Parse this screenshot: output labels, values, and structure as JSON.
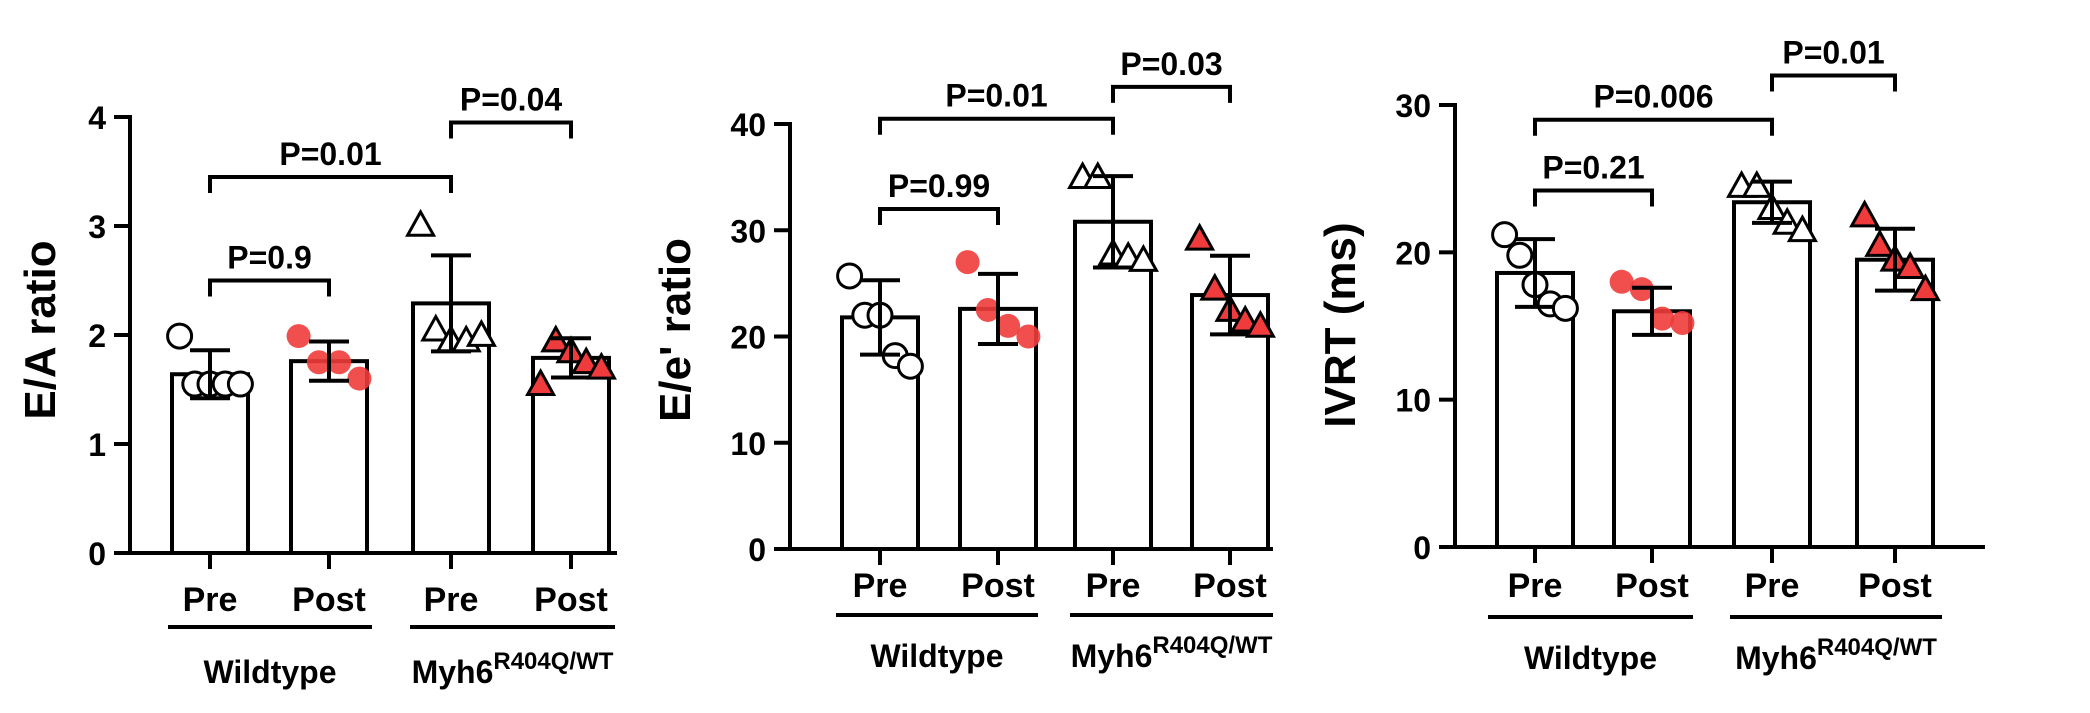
{
  "colors": {
    "wildtype_post": "#EF3B3B",
    "myh6_post": "#E23A3A",
    "stroke": "#000000",
    "bar_fill": "#ffffff"
  },
  "chart_data": [
    {
      "type": "bar",
      "ylabel": "E/A ratio",
      "ylim": [
        0,
        4
      ],
      "yticks": [
        0,
        1,
        2,
        3,
        4
      ],
      "categories": [
        "Pre",
        "Post",
        "Pre",
        "Post"
      ],
      "groups": [
        "Wildtype",
        "Myh6"
      ],
      "group_superscript": "R404Q/WT",
      "means": [
        1.64,
        1.76,
        2.29,
        1.79
      ],
      "sd": [
        0.22,
        0.18,
        0.44,
        0.18
      ],
      "points": [
        [
          1.99,
          1.55,
          1.55,
          1.55,
          1.55
        ],
        [
          1.99,
          1.75,
          1.75,
          1.6
        ],
        [
          3.01,
          2.05,
          1.95,
          1.95,
          2.0
        ],
        [
          1.55,
          1.95,
          1.85,
          1.75,
          1.7
        ]
      ],
      "markers": [
        "circle-open",
        "circle-red",
        "triangle-open",
        "triangle-red"
      ],
      "annotations": [
        {
          "label": "P=0.9",
          "from": 0,
          "to": 1,
          "y": 2.5
        },
        {
          "label": "P=0.01",
          "from": 0,
          "to": 2,
          "y": 3.45
        },
        {
          "label": "P=0.04",
          "from": 2,
          "to": 3,
          "y": 3.95
        }
      ]
    },
    {
      "type": "bar",
      "ylabel": "E/e' ratio",
      "ylim": [
        0,
        40
      ],
      "yticks": [
        0,
        10,
        20,
        30,
        40
      ],
      "categories": [
        "Pre",
        "Post",
        "Pre",
        "Post"
      ],
      "groups": [
        "Wildtype",
        "Myh6"
      ],
      "group_superscript": "R404Q/WT",
      "means": [
        21.8,
        22.6,
        30.8,
        23.9
      ],
      "sd": [
        3.5,
        3.3,
        4.3,
        3.7
      ],
      "points": [
        [
          25.7,
          22.0,
          22.0,
          18.2,
          17.2
        ],
        [
          27.0,
          22.5,
          21.0,
          20.0
        ],
        [
          35.0,
          35.0,
          27.8,
          27.5,
          27.2
        ],
        [
          29.2,
          24.5,
          22.5,
          21.5,
          21.0
        ]
      ],
      "markers": [
        "circle-open",
        "circle-red",
        "triangle-open",
        "triangle-red"
      ],
      "annotations": [
        {
          "label": "P=0.99",
          "from": 0,
          "to": 1,
          "y": 32.0
        },
        {
          "label": "P=0.01",
          "from": 0,
          "to": 2,
          "y": 40.5
        },
        {
          "label": "P=0.03",
          "from": 2,
          "to": 3,
          "y": 43.5
        }
      ]
    },
    {
      "type": "bar",
      "ylabel": "IVRT (ms)",
      "ylim": [
        0,
        30
      ],
      "yticks": [
        0,
        10,
        20,
        30
      ],
      "categories": [
        "Pre",
        "Post",
        "Pre",
        "Post"
      ],
      "groups": [
        "Wildtype",
        "Myh6"
      ],
      "group_superscript": "R404Q/WT",
      "means": [
        18.6,
        16.0,
        23.4,
        19.5
      ],
      "sd": [
        2.3,
        1.6,
        1.4,
        2.1
      ],
      "points": [
        [
          21.2,
          19.8,
          17.8,
          16.5,
          16.2
        ],
        [
          18.0,
          17.5,
          15.5,
          15.2
        ],
        [
          24.5,
          24.5,
          23.0,
          22.0,
          21.5
        ],
        [
          22.5,
          20.5,
          19.5,
          19.0,
          17.5
        ]
      ],
      "markers": [
        "circle-open",
        "circle-red",
        "triangle-open",
        "triangle-red"
      ],
      "annotations": [
        {
          "label": "P=0.21",
          "from": 0,
          "to": 1,
          "y": 24.2
        },
        {
          "label": "P=0.006",
          "from": 0,
          "to": 2,
          "y": 29.0
        },
        {
          "label": "P=0.01",
          "from": 2,
          "to": 3,
          "y": 32.0
        }
      ]
    }
  ]
}
